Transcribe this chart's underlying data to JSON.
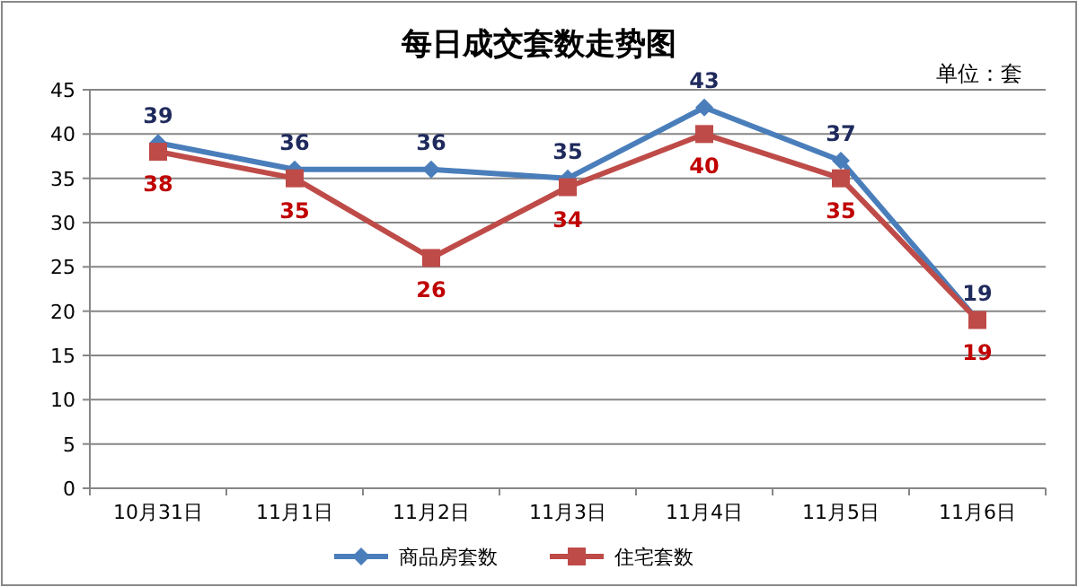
{
  "chart_data": {
    "type": "line",
    "title": "每日成交套数走势图",
    "annotations": [
      "单位：套"
    ],
    "categories": [
      "10月31日",
      "11月1日",
      "11月2日",
      "11月3日",
      "11月4日",
      "11月5日",
      "11月6日"
    ],
    "series": [
      {
        "name": "商品房套数",
        "color": "#4a7ebb",
        "marker": "diamond",
        "values": [
          39,
          36,
          36,
          35,
          43,
          37,
          19
        ]
      },
      {
        "name": "住宅套数",
        "color": "#be4b48",
        "marker": "square",
        "values": [
          38,
          35,
          26,
          34,
          40,
          35,
          19
        ]
      }
    ],
    "ylim": [
      0,
      45
    ],
    "yticks": [
      0,
      5,
      10,
      15,
      20,
      25,
      30,
      35,
      40,
      45
    ],
    "grid": "y",
    "legend": "bottom",
    "data_labels": true,
    "line_style": "solid"
  }
}
